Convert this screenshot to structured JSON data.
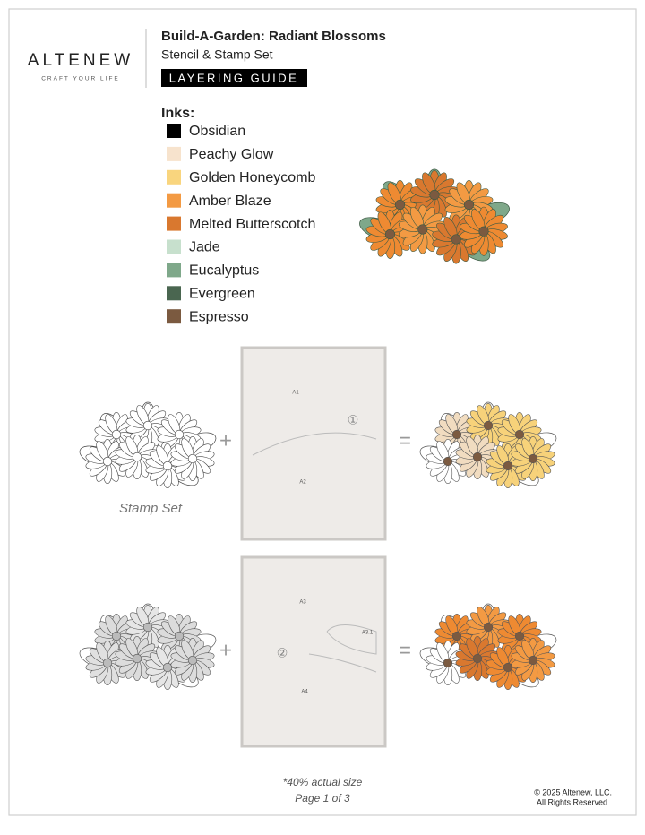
{
  "logo": {
    "name": "ALTENEW",
    "tagline": "CRAFT YOUR LIFE"
  },
  "header": {
    "title": "Build-A-Garden: Radiant Blossoms",
    "subtitle": "Stencil & Stamp Set",
    "badge": "LAYERING GUIDE"
  },
  "inks": {
    "label": "Inks:",
    "items": [
      {
        "name": "Obsidian",
        "color": "#000000"
      },
      {
        "name": "Peachy Glow",
        "color": "#f7e3cd"
      },
      {
        "name": "Golden Honeycomb",
        "color": "#f9d57e"
      },
      {
        "name": "Amber Blaze",
        "color": "#f39a43"
      },
      {
        "name": "Melted Butterscotch",
        "color": "#d9782f"
      },
      {
        "name": "Jade",
        "color": "#c7e0cd"
      },
      {
        "name": "Eucalyptus",
        "color": "#7fa88a"
      },
      {
        "name": "Evergreen",
        "color": "#4a6650"
      },
      {
        "name": "Espresso",
        "color": "#7b5a40"
      }
    ]
  },
  "steps": [
    {
      "plus": "+",
      "equals": "=",
      "caption": "Stamp Set",
      "stencil_labels": [
        "A1",
        "①",
        "A2"
      ]
    },
    {
      "plus": "+",
      "equals": "=",
      "stencil_labels": [
        "A3",
        "A3.1",
        "②",
        "A4"
      ]
    }
  ],
  "footer": {
    "note": "*40% actual size",
    "page": "Page 1 of 3",
    "copyright": "© 2025 Altenew, LLC.",
    "rights": "All Rights Reserved"
  }
}
